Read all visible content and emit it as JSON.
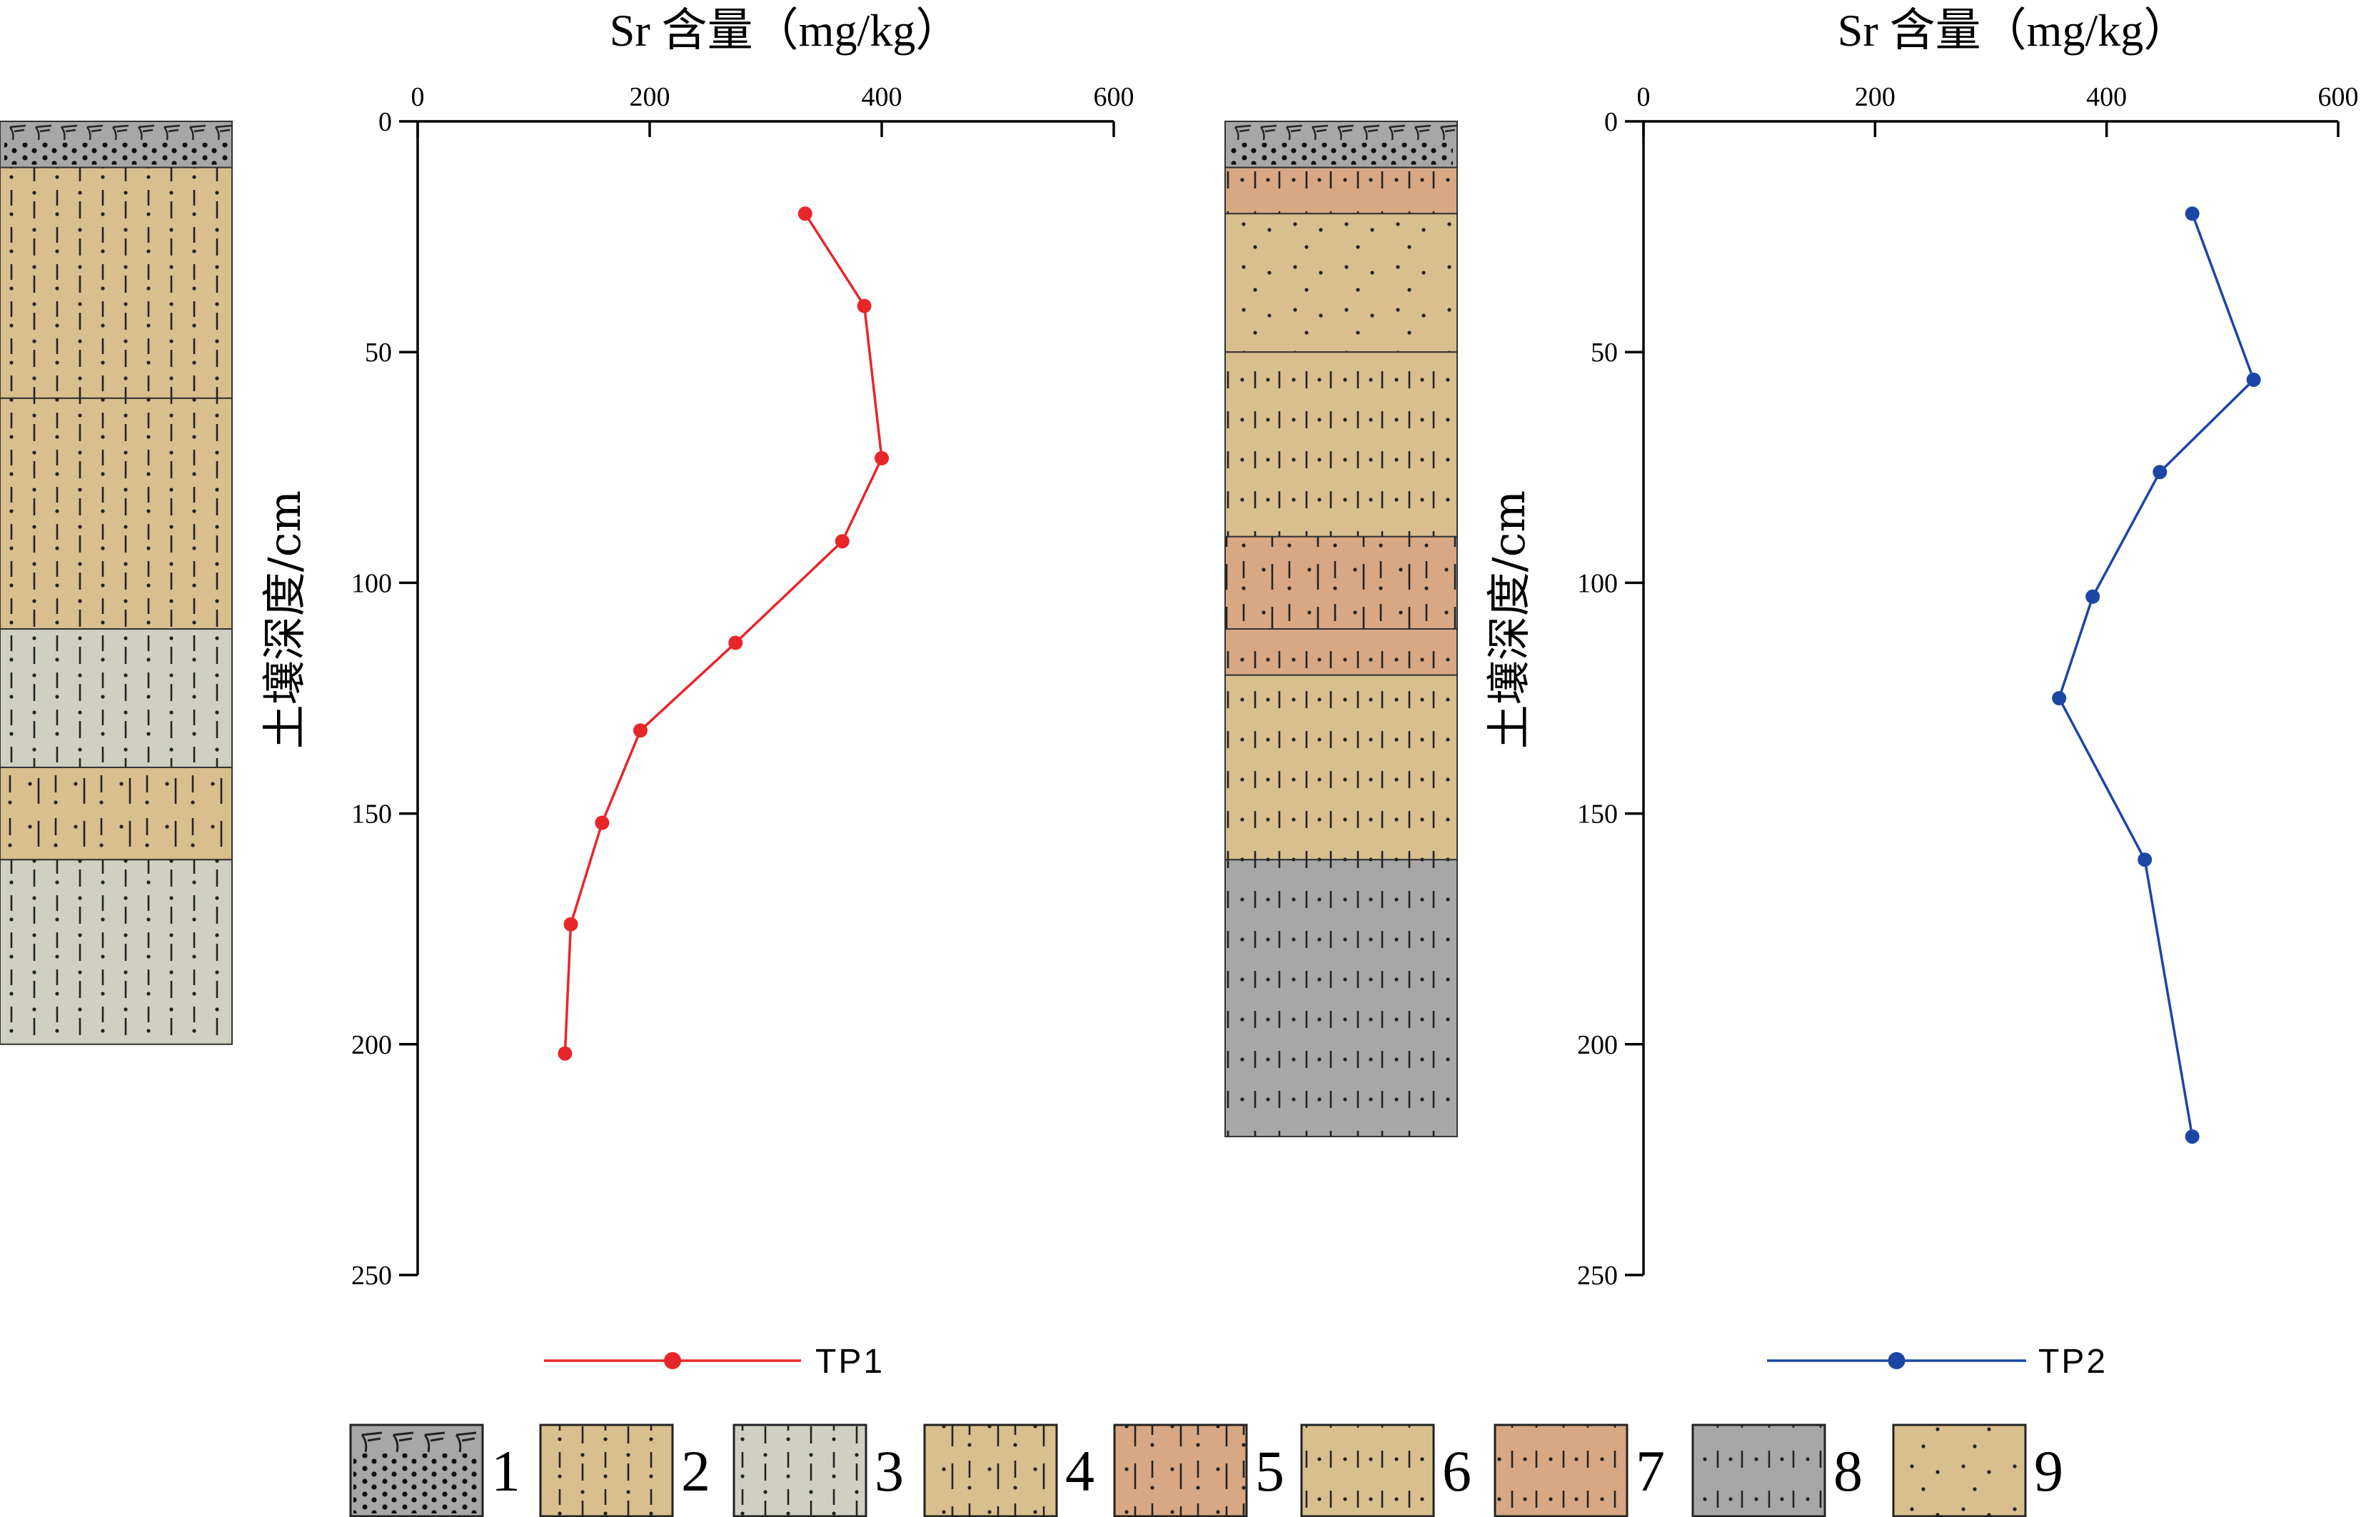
{
  "chart_data": [
    {
      "type": "line",
      "xlabel": "Sr 含量（mg/kg）",
      "ylabel": "土壤深度/cm",
      "xlim": [
        0,
        600
      ],
      "ylim": [
        0,
        250
      ],
      "y_inverted": true,
      "x_axis_position": "top",
      "xticks": [
        "0",
        "200",
        "400",
        "600"
      ],
      "yticks": [
        "0",
        "50",
        "100",
        "150",
        "200",
        "250"
      ],
      "grid": false,
      "legend": "bottom",
      "series": [
        {
          "name": "TP1",
          "color": "#e8262a",
          "marker": "circle",
          "points": [
            {
              "x": 334,
              "y": 20
            },
            {
              "x": 385,
              "y": 40
            },
            {
              "x": 400,
              "y": 73
            },
            {
              "x": 366,
              "y": 91
            },
            {
              "x": 274,
              "y": 113
            },
            {
              "x": 192,
              "y": 132
            },
            {
              "x": 159,
              "y": 152
            },
            {
              "x": 132,
              "y": 174
            },
            {
              "x": 127,
              "y": 202
            }
          ]
        }
      ],
      "soil_column": [
        {
          "from": 0,
          "to": 10,
          "key": "1"
        },
        {
          "from": 10,
          "to": 60,
          "key": "2"
        },
        {
          "from": 60,
          "to": 110,
          "key": "2"
        },
        {
          "from": 110,
          "to": 140,
          "key": "3"
        },
        {
          "from": 140,
          "to": 160,
          "key": "4"
        },
        {
          "from": 160,
          "to": 200,
          "key": "3"
        }
      ]
    },
    {
      "type": "line",
      "xlabel": "Sr 含量（mg/kg）",
      "ylabel": "土壤深度/cm",
      "xlim": [
        0,
        600
      ],
      "ylim": [
        0,
        250
      ],
      "y_inverted": true,
      "x_axis_position": "top",
      "xticks": [
        "0",
        "200",
        "400",
        "600"
      ],
      "yticks": [
        "0",
        "50",
        "100",
        "150",
        "200",
        "250"
      ],
      "grid": false,
      "legend": "bottom",
      "series": [
        {
          "name": "TP2",
          "color": "#1c46a6",
          "marker": "circle",
          "points": [
            {
              "x": 474,
              "y": 20
            },
            {
              "x": 527,
              "y": 56
            },
            {
              "x": 446,
              "y": 76
            },
            {
              "x": 388,
              "y": 103
            },
            {
              "x": 359,
              "y": 125
            },
            {
              "x": 433,
              "y": 160
            },
            {
              "x": 474,
              "y": 220
            }
          ]
        }
      ],
      "soil_column": [
        {
          "from": 0,
          "to": 10,
          "key": "1"
        },
        {
          "from": 10,
          "to": 20,
          "key": "7"
        },
        {
          "from": 20,
          "to": 50,
          "key": "9"
        },
        {
          "from": 50,
          "to": 90,
          "key": "6"
        },
        {
          "from": 90,
          "to": 110,
          "key": "5"
        },
        {
          "from": 110,
          "to": 120,
          "key": "7"
        },
        {
          "from": 120,
          "to": 160,
          "key": "6"
        },
        {
          "from": 160,
          "to": 220,
          "key": "8"
        }
      ]
    }
  ],
  "pattern_key": [
    {
      "label": "1",
      "fill": "#a7a7a7",
      "pattern": "grass-gravel"
    },
    {
      "label": "2",
      "fill": "#d9bf8d",
      "pattern": "dot-dash"
    },
    {
      "label": "3",
      "fill": "#cfd0c1",
      "pattern": "dot-dash"
    },
    {
      "label": "4",
      "fill": "#d9bf8d",
      "pattern": "dot-dash-sparse"
    },
    {
      "label": "5",
      "fill": "#d7a883",
      "pattern": "dot-dash-sparse"
    },
    {
      "label": "6",
      "fill": "#d9bf8d",
      "pattern": "dot-tick"
    },
    {
      "label": "7",
      "fill": "#d7a883",
      "pattern": "dot-tick"
    },
    {
      "label": "8",
      "fill": "#a7a7a7",
      "pattern": "dot-tick"
    },
    {
      "label": "9",
      "fill": "#d9bf8d",
      "pattern": "scattered-dots"
    }
  ]
}
